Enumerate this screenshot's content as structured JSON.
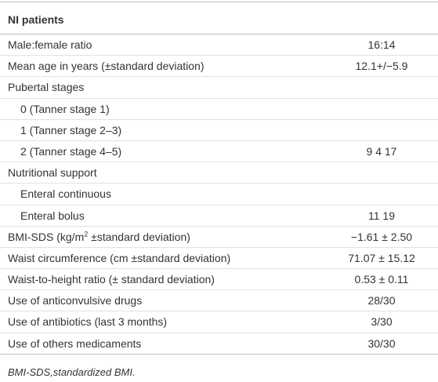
{
  "table": {
    "header": "NI patients",
    "rows": [
      {
        "label": "Male:female ratio",
        "value": "16:14"
      },
      {
        "label": "Mean age in years (±standard deviation)",
        "value": "12.1+/−5.9"
      },
      {
        "label": "Pubertal stages",
        "sub": [
          {
            "label": "0 (Tanner stage 1)"
          },
          {
            "label": "1 (Tanner stage 2–3)"
          },
          {
            "label": "2 (Tanner stage 4–5)",
            "value": "9 4 17"
          }
        ]
      },
      {
        "label": "Nutritional support",
        "sub": [
          {
            "label": "Enteral continuous"
          },
          {
            "label": "Enteral bolus",
            "value": "11 19"
          }
        ]
      },
      {
        "label": "BMI-SDS (kg/m",
        "label_sup": "2",
        "label_rest": " ±standard deviation)",
        "value": "−1.61 ± 2.50"
      },
      {
        "label": "Waist circumference (cm ±standard deviation)",
        "value": "71.07 ± 15.12"
      },
      {
        "label": "Waist-to-height ratio (± standard deviation)",
        "value": "0.53 ± 0.11"
      },
      {
        "label": "Use of anticonvulsive drugs",
        "value": "28/30"
      },
      {
        "label": "Use of antibiotics (last 3 months)",
        "value": "3/30"
      },
      {
        "label": "Use of others medicaments",
        "value": "30/30"
      }
    ],
    "footnote": "BMI-SDS,standardized BMI."
  }
}
